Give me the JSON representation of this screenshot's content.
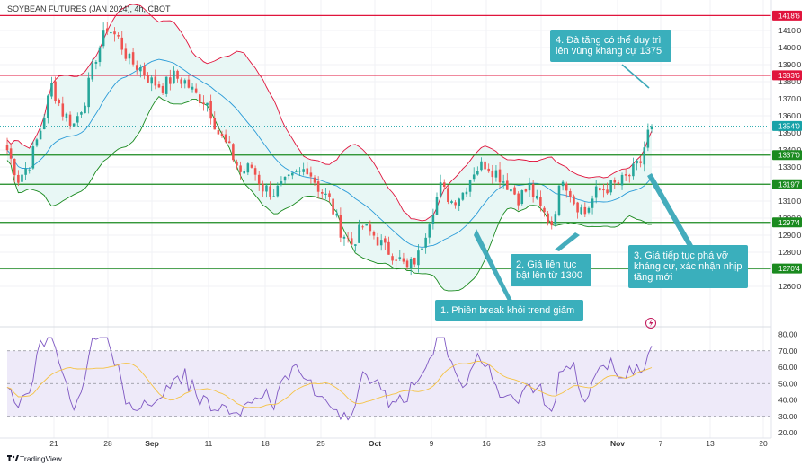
{
  "header": {
    "title": "SOYBEAN FUTURES (JAN 2024), 4h, CBOT"
  },
  "brand": {
    "name": "TradingView"
  },
  "chart_data": {
    "type": "candlestick",
    "price_axis": {
      "ticks": [
        "1410'0",
        "1400'0",
        "1390'0",
        "1380'0",
        "1370'0",
        "1360'0",
        "1350'0",
        "1340'0",
        "1330'0",
        "1320'0",
        "1310'0",
        "1300'0",
        "1290'0",
        "1280'0",
        "1270'0",
        "1260'0"
      ],
      "tick_values": [
        1410,
        1400,
        1390,
        1380,
        1370,
        1360,
        1350,
        1340,
        1330,
        1320,
        1310,
        1300,
        1290,
        1280,
        1270,
        1260
      ],
      "range": [
        1252,
        1425
      ]
    },
    "time_axis": {
      "labels": [
        "21",
        "28",
        "Sep",
        "11",
        "18",
        "25",
        "Oct",
        "9",
        "16",
        "23",
        "Nov",
        "7",
        "13",
        "20"
      ]
    },
    "levels": [
      {
        "value": 1418.75,
        "label": "1418'6",
        "color": "#e0143c"
      },
      {
        "value": 1383.75,
        "label": "1383'6",
        "color": "#e0143c"
      },
      {
        "value": 1337.0,
        "label": "1337'0",
        "color": "#1a8a1f"
      },
      {
        "value": 1319.875,
        "label": "1319'7",
        "color": "#1a8a1f"
      },
      {
        "value": 1297.5,
        "label": "1297'4",
        "color": "#1a8a1f"
      },
      {
        "value": 1270.5,
        "label": "1270'4",
        "color": "#1a8a1f"
      }
    ],
    "last_price": {
      "value": 1354.0,
      "label": "1354'0",
      "color": "#17a2a8"
    },
    "price_path": [
      [
        0,
        1340
      ],
      [
        3,
        1323
      ],
      [
        6,
        1332
      ],
      [
        9,
        1352
      ],
      [
        12,
        1378
      ],
      [
        15,
        1362
      ],
      [
        18,
        1355
      ],
      [
        21,
        1370
      ],
      [
        24,
        1395
      ],
      [
        27,
        1412
      ],
      [
        30,
        1405
      ],
      [
        33,
        1392
      ],
      [
        36,
        1388
      ],
      [
        39,
        1380
      ],
      [
        42,
        1377
      ],
      [
        45,
        1383
      ],
      [
        48,
        1380
      ],
      [
        51,
        1372
      ],
      [
        54,
        1368
      ],
      [
        57,
        1350
      ],
      [
        60,
        1340
      ],
      [
        63,
        1327
      ],
      [
        66,
        1330
      ],
      [
        69,
        1318
      ],
      [
        72,
        1315
      ],
      [
        75,
        1320
      ],
      [
        78,
        1325
      ],
      [
        81,
        1330
      ],
      [
        84,
        1318
      ],
      [
        87,
        1310
      ],
      [
        90,
        1293
      ],
      [
        93,
        1285
      ],
      [
        96,
        1295
      ],
      [
        99,
        1290
      ],
      [
        102,
        1282
      ],
      [
        105,
        1278
      ],
      [
        108,
        1270
      ],
      [
        111,
        1278
      ],
      [
        114,
        1300
      ],
      [
        117,
        1318
      ],
      [
        120,
        1310
      ],
      [
        123,
        1315
      ],
      [
        126,
        1328
      ],
      [
        129,
        1332
      ],
      [
        132,
        1327
      ],
      [
        135,
        1320
      ],
      [
        138,
        1312
      ],
      [
        141,
        1318
      ],
      [
        144,
        1305
      ],
      [
        147,
        1297
      ],
      [
        150,
        1325
      ],
      [
        153,
        1310
      ],
      [
        156,
        1303
      ],
      [
        159,
        1315
      ],
      [
        162,
        1318
      ],
      [
        165,
        1320
      ],
      [
        168,
        1325
      ],
      [
        171,
        1333
      ],
      [
        173,
        1350
      ],
      [
        174,
        1354
      ]
    ],
    "bands": {
      "upper_color": "#e0143c",
      "lower_color": "#1a8a1f",
      "basis_color": "#2a9bd8",
      "fill": "#e8f7f5"
    },
    "rsi": {
      "levels": [
        80,
        70,
        60,
        50,
        40,
        30,
        20
      ],
      "labels": [
        "80.00",
        "70.00",
        "60.00",
        "50.00",
        "40.00",
        "30.00",
        "20.00"
      ],
      "band": [
        30,
        70
      ],
      "line_color": "#7e57c2",
      "ma_color": "#f5c243",
      "band_fill": "#eeeaf9",
      "last": 73
    },
    "annotations": [
      {
        "id": "a1",
        "text": [
          "1. Phiên break khỏi trend giảm"
        ]
      },
      {
        "id": "a2",
        "text": [
          "2. Giá liên tục",
          "bật lên từ 1300"
        ]
      },
      {
        "id": "a3",
        "text": [
          "3. Giá tiếp tục phá vỡ",
          "kháng cự, xác nhận nhịp",
          "tăng mới"
        ]
      },
      {
        "id": "a4",
        "text": [
          "4. Đà tăng có thể duy trì",
          "lên vùng kháng cự 1375"
        ]
      }
    ]
  }
}
